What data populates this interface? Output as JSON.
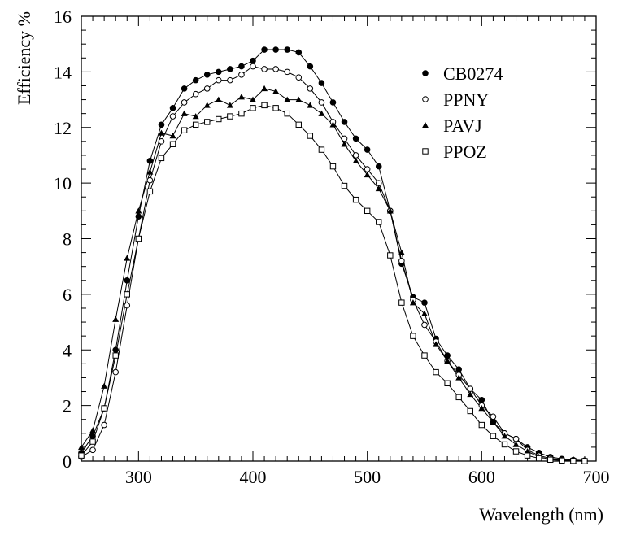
{
  "chart_data": {
    "type": "line",
    "title": "",
    "xlabel": "Wavelength (nm)",
    "ylabel": "Efficiency %",
    "xlim": [
      250,
      700
    ],
    "ylim": [
      0,
      16
    ],
    "xticks": [
      300,
      400,
      500,
      600,
      700
    ],
    "yticks": [
      0,
      2,
      4,
      6,
      8,
      10,
      12,
      14,
      16
    ],
    "grid": false,
    "legend": "top-right",
    "series": [
      {
        "name": "CB0274",
        "marker": "filled-circle",
        "x": [
          250,
          260,
          270,
          280,
          290,
          300,
          310,
          320,
          330,
          340,
          350,
          360,
          370,
          380,
          390,
          400,
          410,
          420,
          430,
          440,
          450,
          460,
          470,
          480,
          490,
          500,
          510,
          520,
          530,
          540,
          550,
          560,
          570,
          580,
          590,
          600,
          610,
          620,
          630,
          640,
          650,
          660,
          670,
          680,
          690
        ],
        "y": [
          0.3,
          0.9,
          1.9,
          4.0,
          6.5,
          8.8,
          10.8,
          12.1,
          12.7,
          13.4,
          13.7,
          13.9,
          14.0,
          14.1,
          14.2,
          14.4,
          14.8,
          14.8,
          14.8,
          14.7,
          14.2,
          13.6,
          12.9,
          12.2,
          11.6,
          11.2,
          10.6,
          9.0,
          7.1,
          5.9,
          5.7,
          4.4,
          3.8,
          3.3,
          2.6,
          2.2,
          1.4,
          1.0,
          0.8,
          0.5,
          0.3,
          0.15,
          0.08,
          0.04,
          0.02
        ]
      },
      {
        "name": "PPNY",
        "marker": "open-circle",
        "x": [
          250,
          260,
          270,
          280,
          290,
          300,
          310,
          320,
          330,
          340,
          350,
          360,
          370,
          380,
          390,
          400,
          410,
          420,
          430,
          440,
          450,
          460,
          470,
          480,
          490,
          500,
          510,
          520,
          530,
          540,
          550,
          560,
          570,
          580,
          590,
          600,
          610,
          620,
          630,
          640,
          650,
          660,
          670,
          680,
          690
        ],
        "y": [
          0.15,
          0.4,
          1.3,
          3.2,
          5.6,
          8.0,
          10.1,
          11.5,
          12.4,
          12.9,
          13.2,
          13.4,
          13.7,
          13.7,
          13.9,
          14.2,
          14.1,
          14.1,
          14.0,
          13.8,
          13.4,
          12.9,
          12.2,
          11.6,
          11.0,
          10.5,
          10.0,
          9.0,
          7.2,
          5.8,
          4.9,
          4.3,
          3.6,
          3.1,
          2.6,
          2.0,
          1.6,
          1.0,
          0.8,
          0.4,
          0.2,
          0.1,
          0.05,
          0.02,
          0.01
        ]
      },
      {
        "name": "PAVJ",
        "marker": "filled-triangle",
        "x": [
          250,
          260,
          270,
          280,
          290,
          300,
          310,
          320,
          330,
          340,
          350,
          360,
          370,
          380,
          390,
          400,
          410,
          420,
          430,
          440,
          450,
          460,
          470,
          480,
          490,
          500,
          510,
          520,
          530,
          540,
          550,
          560,
          570,
          580,
          590,
          600,
          610,
          620,
          630,
          640,
          650,
          660,
          670,
          680,
          690
        ],
        "y": [
          0.5,
          1.1,
          2.7,
          5.1,
          7.3,
          9.0,
          10.4,
          11.8,
          11.7,
          12.5,
          12.4,
          12.8,
          13.0,
          12.8,
          13.1,
          13.0,
          13.4,
          13.3,
          13.0,
          13.0,
          12.8,
          12.5,
          12.1,
          11.4,
          10.8,
          10.3,
          9.8,
          9.0,
          7.5,
          5.7,
          5.3,
          4.2,
          3.6,
          3.0,
          2.4,
          1.9,
          1.4,
          0.9,
          0.6,
          0.35,
          0.15,
          0.07,
          0.03,
          0.02,
          0.01
        ]
      },
      {
        "name": "PPOZ",
        "marker": "open-square",
        "x": [
          250,
          260,
          270,
          280,
          290,
          300,
          310,
          320,
          330,
          340,
          350,
          360,
          370,
          380,
          390,
          400,
          410,
          420,
          430,
          440,
          450,
          460,
          470,
          480,
          490,
          500,
          510,
          520,
          530,
          540,
          550,
          560,
          570,
          580,
          590,
          600,
          610,
          620,
          630,
          640,
          650,
          660,
          670,
          680,
          690
        ],
        "y": [
          0.2,
          0.7,
          1.9,
          3.8,
          6.0,
          8.0,
          9.7,
          10.9,
          11.4,
          11.9,
          12.1,
          12.2,
          12.3,
          12.4,
          12.5,
          12.7,
          12.8,
          12.7,
          12.5,
          12.1,
          11.7,
          11.2,
          10.6,
          9.9,
          9.4,
          9.0,
          8.6,
          7.4,
          5.7,
          4.5,
          3.8,
          3.2,
          2.8,
          2.3,
          1.8,
          1.3,
          0.9,
          0.6,
          0.35,
          0.2,
          0.1,
          0.05,
          0.02,
          0.01,
          0.0
        ]
      }
    ]
  }
}
